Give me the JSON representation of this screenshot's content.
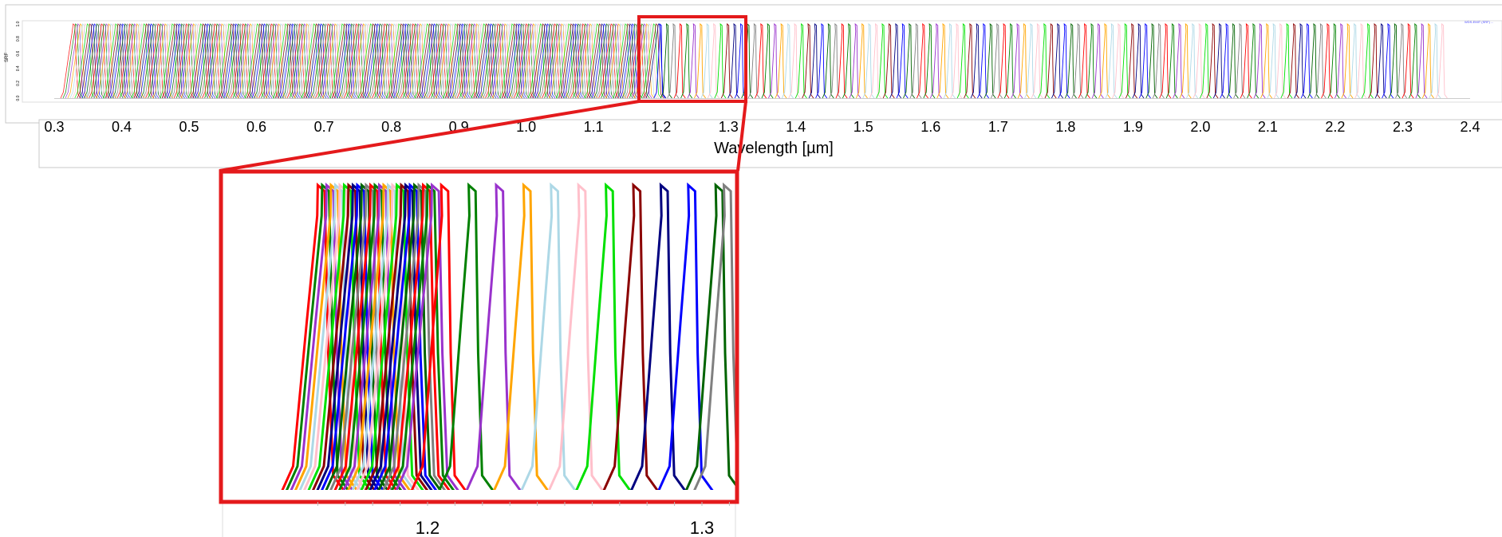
{
  "chart_data": [
    {
      "type": "line",
      "title": "",
      "xlabel": "Wavelength [µm]",
      "ylabel": "SRF",
      "xlim": [
        0.28,
        2.42
      ],
      "ylim": [
        0,
        1
      ],
      "x_ticks": [
        "0.3",
        "0.4",
        "0.5",
        "0.6",
        "0.7",
        "0.8",
        "0.9",
        "1.0",
        "1.1",
        "1.2",
        "1.3",
        "1.4",
        "1.5",
        "1.6",
        "1.7",
        "1.8",
        "1.9",
        "2.0",
        "2.1",
        "2.2",
        "2.3",
        "2.4"
      ],
      "y_ticks": [
        "0.0",
        "0.2",
        "0.4",
        "0.6",
        "0.8",
        "1.0"
      ],
      "series_description": "Hundreds of narrow band spectral response functions with peak 1.0, evenly stacked from about 0.33 to 2.36 µm; densely overlapping below 1.2 µm and spaced roughly every 0.01 µm above.",
      "band_range": [
        0.33,
        2.36
      ],
      "band_spacing_um": 0.01,
      "legend": "top-right",
      "legend_text": "WDS-EMIT (SRF) ..."
    },
    {
      "type": "line",
      "title": "",
      "xlabel": "",
      "ylabel": "",
      "xlim": [
        1.16,
        1.313
      ],
      "ylim": [
        0,
        1
      ],
      "x_ticks": [
        "1.2",
        "1.3"
      ],
      "series_description": "Zoomed inset of the region highlighted by the red box: individual band response curves near 1.2–1.3 µm.",
      "band_centers_after_1_2": [
        1.207,
        1.217,
        1.227,
        1.237,
        1.247,
        1.257,
        1.267,
        1.277,
        1.287,
        1.297,
        1.307,
        1.31
      ]
    }
  ],
  "colors": {
    "highlight": "#e41a1c",
    "palette": [
      "#ff0000",
      "#008000",
      "#9932cc",
      "#ffa500",
      "#add8e6",
      "#ffc0cb",
      "#00e000",
      "#8b0000",
      "#000080",
      "#0000ff",
      "#006400",
      "#808080"
    ]
  }
}
